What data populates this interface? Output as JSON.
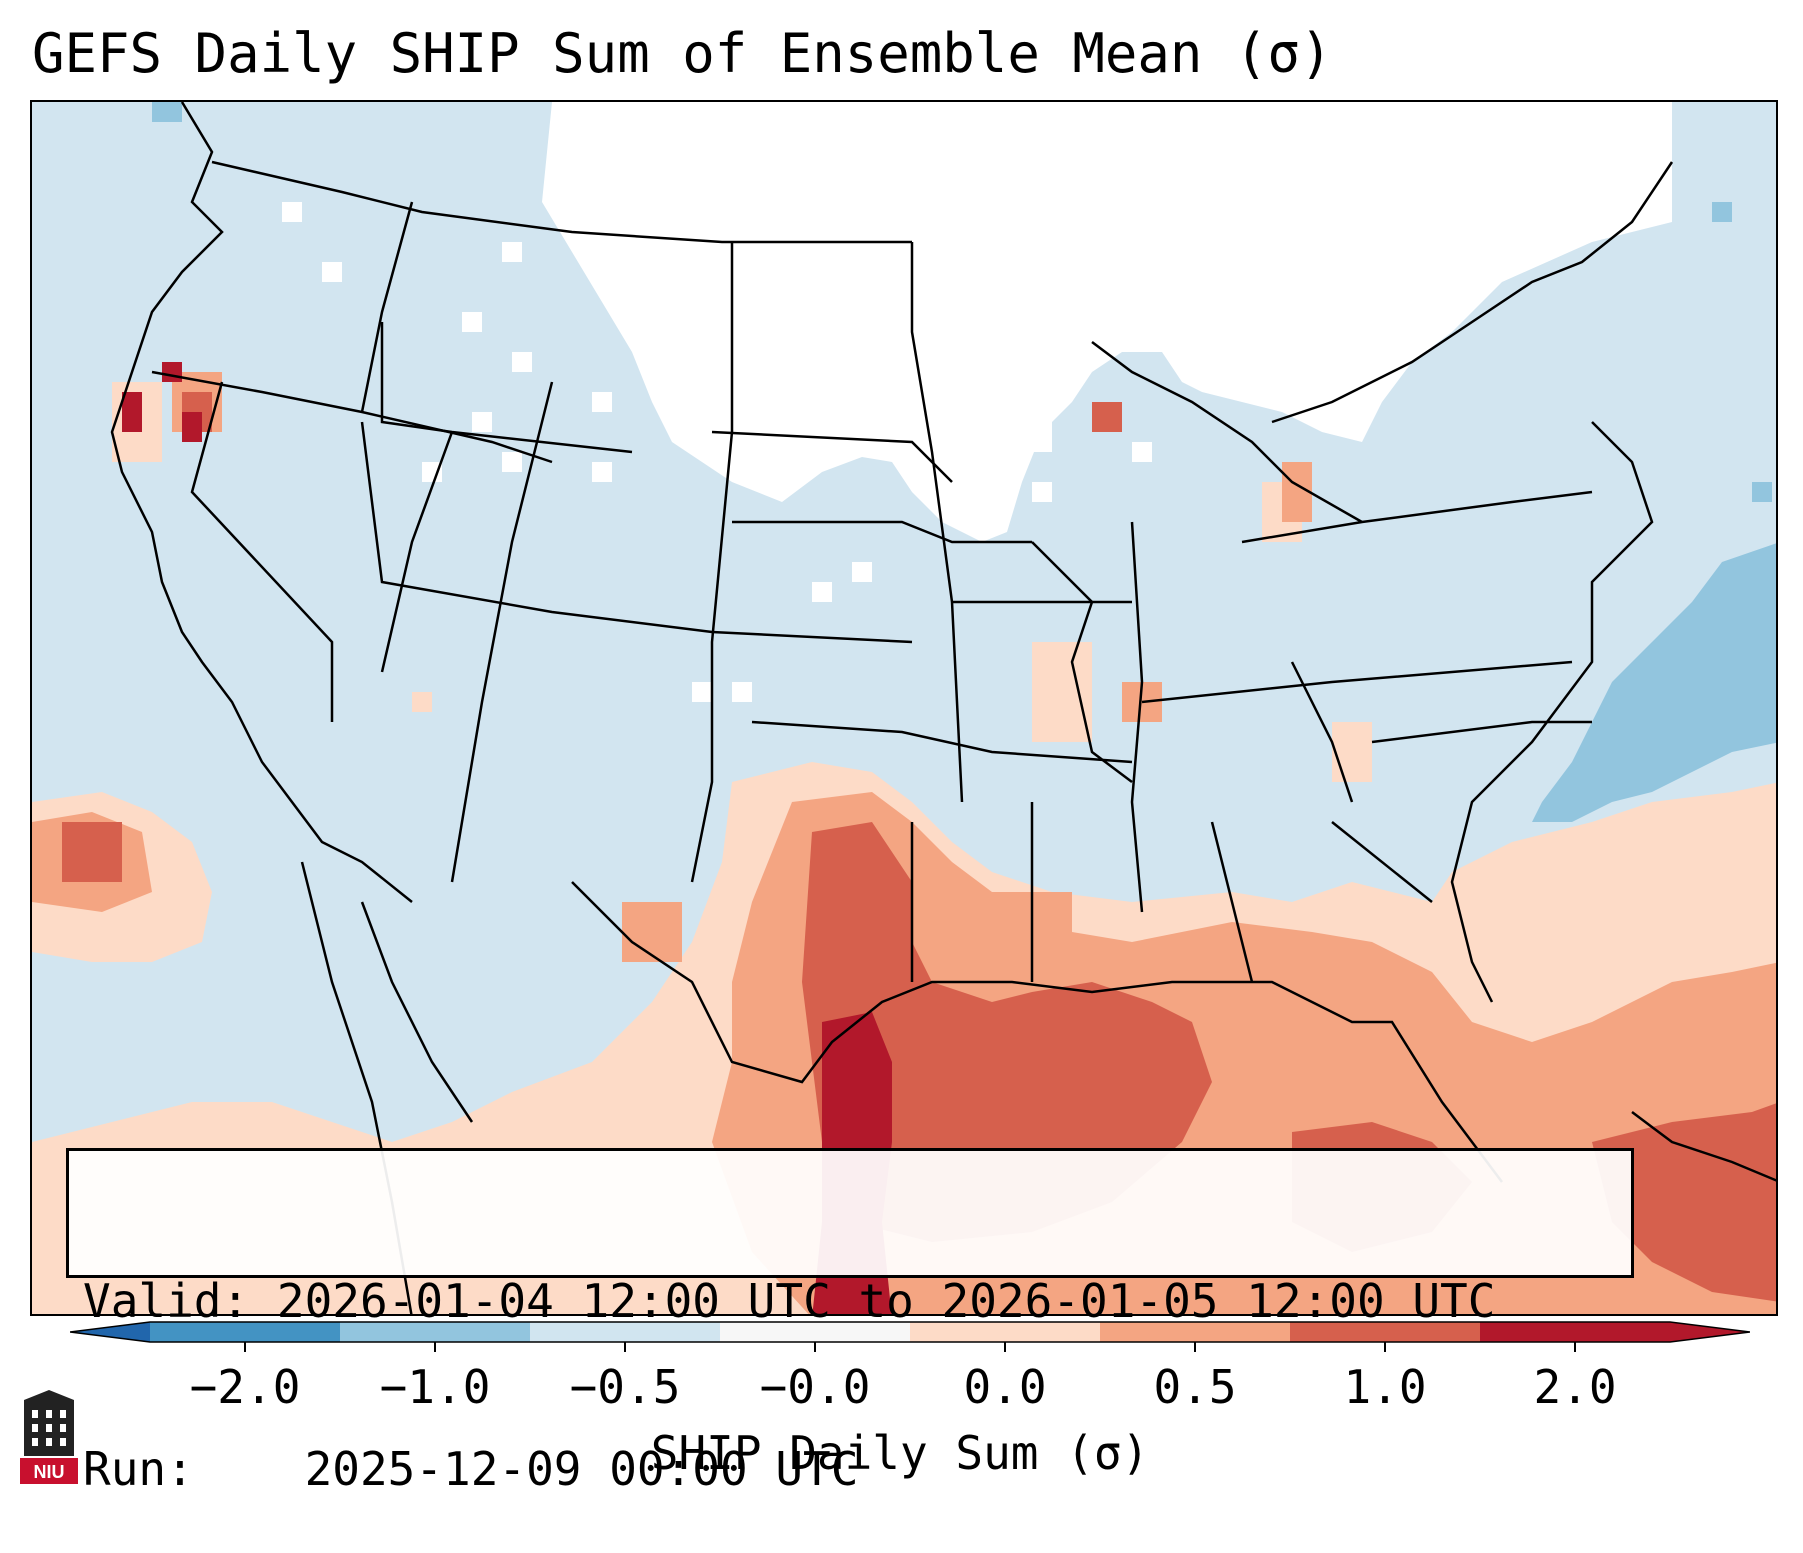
{
  "title": "GEFS Daily SHIP Sum of Ensemble Mean (σ)",
  "info": {
    "valid_label": "Valid:",
    "valid_value": "2026-01-04 12:00 UTC to 2026-01-05 12:00 UTC",
    "run_label": "Run:",
    "run_value": "2025-12-09 00:00 UTC"
  },
  "colorbar": {
    "title": "SHIP Daily Sum (σ)",
    "ticks": [
      "−2.0",
      "−1.0",
      "−0.5",
      "−0.0",
      "0.0",
      "0.5",
      "1.0",
      "2.0"
    ],
    "colors": [
      "#4393c3",
      "#92c5de",
      "#d1e5f0",
      "#f7f7f7",
      "#fddbc7",
      "#f4a582",
      "#d6604d",
      "#b2182b"
    ],
    "extend_low_color": "#2166ac",
    "extend_high_color": "#b2182b"
  },
  "logo": {
    "text": "NIU"
  },
  "palette": {
    "neutral_bin": "#ffffff",
    "light_blue": "#d1e5f0",
    "mid_blue": "#92c5de",
    "light_red": "#fddbc7",
    "salmon": "#f4a582",
    "red": "#d6604d",
    "dark_red": "#b2182b"
  }
}
